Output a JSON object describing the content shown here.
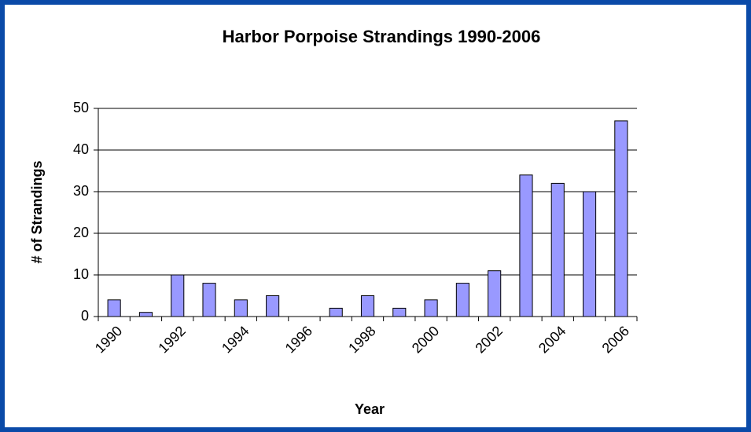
{
  "chart_data": {
    "type": "bar",
    "title": "Harbor Porpoise Strandings 1990-2006",
    "x_label": "Year",
    "y_label": "# of Strandings",
    "categories": [
      "1990",
      null,
      "1992",
      null,
      "1994",
      null,
      "1996",
      null,
      "1998",
      null,
      "2000",
      null,
      "2002",
      null,
      "2004",
      null,
      "2006"
    ],
    "values": [
      4,
      1,
      10,
      8,
      4,
      5,
      0,
      2,
      5,
      2,
      4,
      8,
      11,
      34,
      32,
      30,
      47
    ],
    "color": "#9999ff",
    "ylim": [
      0,
      50
    ],
    "yticks": [
      0,
      10,
      20,
      30,
      40,
      50
    ],
    "grid": true
  }
}
